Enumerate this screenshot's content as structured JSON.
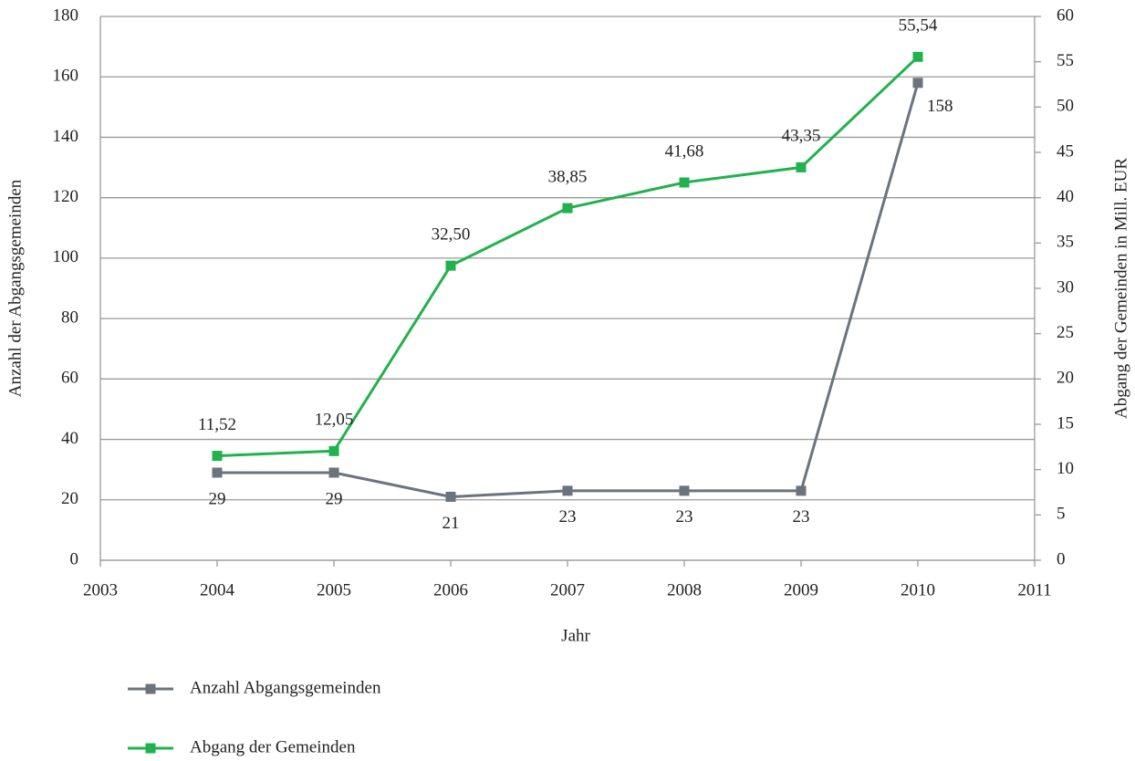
{
  "chart_data": {
    "type": "line",
    "x_label": "Jahr",
    "y_label": "Anzahl der Abgangsgemeinden",
    "y2_label": "Abgang der Gemeinden in Mill. EUR",
    "x": [
      2004,
      2005,
      2006,
      2007,
      2008,
      2009,
      2010
    ],
    "xlim": [
      2003,
      2011
    ],
    "xticks": [
      2003,
      2004,
      2005,
      2006,
      2007,
      2008,
      2009,
      2010,
      2011
    ],
    "ylim": [
      0,
      180
    ],
    "yticks": [
      0,
      20,
      40,
      60,
      80,
      100,
      120,
      140,
      160,
      180
    ],
    "y2lim": [
      0,
      60
    ],
    "y2ticks": [
      0,
      5,
      10,
      15,
      20,
      25,
      30,
      35,
      40,
      45,
      50,
      55,
      60
    ],
    "grid": true,
    "legend": "bottom",
    "series": [
      {
        "name": "Anzahl Abgangsgemeinden",
        "color": "#6b737c",
        "values": [
          29,
          29,
          21,
          23,
          23,
          23,
          158
        ]
      },
      {
        "name": "Abgang der Gemeinden",
        "color": "#22b14c",
        "axis": "y2",
        "values": [
          11.52,
          12.05,
          32.5,
          38.85,
          41.68,
          43.35,
          55.54
        ],
        "value_labels": [
          "11,52",
          "12,05",
          "32,50",
          "38,85",
          "41,68",
          "43,35",
          "55,54"
        ]
      }
    ]
  }
}
